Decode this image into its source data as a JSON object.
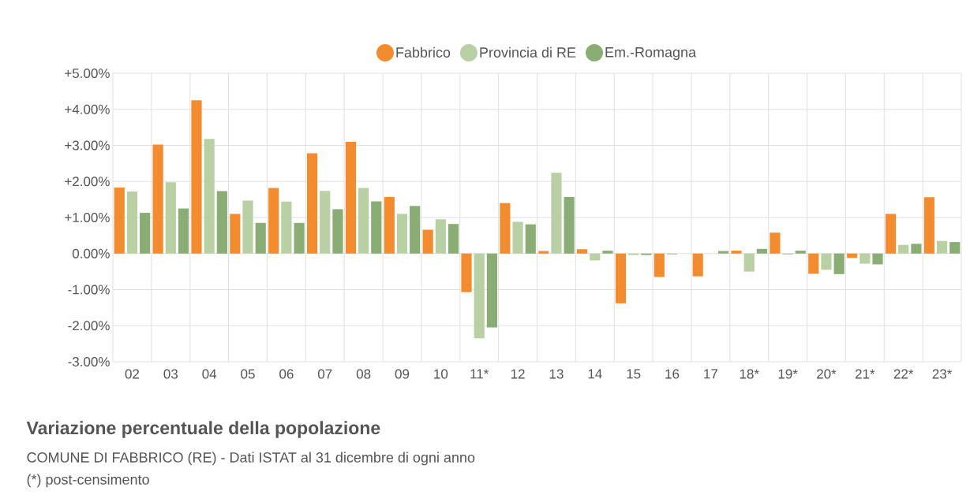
{
  "chart_data": {
    "type": "bar",
    "title": "Variazione percentuale della popolazione",
    "subtitle": "COMUNE DI FABBRICO (RE) - Dati ISTAT al 31 dicembre di ogni anno",
    "annotations": [
      "(*) post-censimento"
    ],
    "categories": [
      "02",
      "03",
      "04",
      "05",
      "06",
      "07",
      "08",
      "09",
      "10",
      "11*",
      "12",
      "13",
      "14",
      "15",
      "16",
      "17",
      "18*",
      "19*",
      "20*",
      "21*",
      "22*",
      "23*"
    ],
    "series": [
      {
        "name": "Fabbrico",
        "color": "#f28c2e",
        "values": [
          1.83,
          3.02,
          4.25,
          1.1,
          1.82,
          2.78,
          3.1,
          1.57,
          0.66,
          -1.07,
          1.4,
          0.07,
          0.12,
          -1.38,
          -0.65,
          -0.63,
          0.08,
          0.58,
          -0.56,
          -0.12,
          1.1,
          1.56
        ]
      },
      {
        "name": "Provincia di RE",
        "color": "#b8d0a4",
        "values": [
          1.72,
          1.98,
          3.18,
          1.47,
          1.44,
          1.74,
          1.82,
          1.1,
          0.95,
          -2.35,
          0.88,
          2.24,
          -0.19,
          -0.04,
          -0.03,
          null,
          -0.5,
          -0.03,
          -0.45,
          -0.28,
          0.24,
          0.35
        ]
      },
      {
        "name": "Em.-Romagna",
        "color": "#8aad76",
        "values": [
          1.13,
          1.25,
          1.73,
          0.85,
          0.85,
          1.23,
          1.45,
          1.32,
          0.82,
          -2.05,
          0.81,
          1.57,
          0.08,
          -0.04,
          null,
          0.07,
          0.13,
          0.08,
          -0.57,
          -0.3,
          0.27,
          0.32
        ]
      }
    ],
    "ylim": [
      -3,
      5
    ],
    "yticks": [
      {
        "value": -3,
        "label": "-3.00%"
      },
      {
        "value": -2,
        "label": "-2.00%"
      },
      {
        "value": -1,
        "label": "-1.00%"
      },
      {
        "value": 0,
        "label": "0.00%"
      },
      {
        "value": 1,
        "label": "+1.00%"
      },
      {
        "value": 2,
        "label": "+2.00%"
      },
      {
        "value": 3,
        "label": "+3.00%"
      },
      {
        "value": 4,
        "label": "+4.00%"
      },
      {
        "value": 5,
        "label": "+5.00%"
      }
    ],
    "grid": true,
    "legend": "top"
  }
}
